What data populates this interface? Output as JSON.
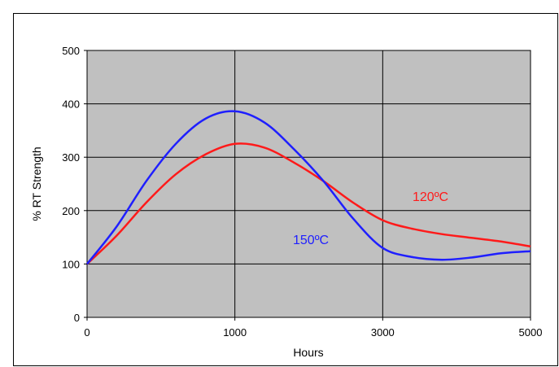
{
  "chart_data": {
    "type": "line",
    "xlabel": "Hours",
    "ylabel": "% RT Strength",
    "x_ticks": [
      "0",
      "1000",
      "3000",
      "5000"
    ],
    "y_ticks": [
      0,
      100,
      200,
      300,
      400,
      500
    ],
    "ylim": [
      0,
      500
    ],
    "grid": true,
    "plot_background": "#c0c0c0",
    "series": [
      {
        "name": "150ºC",
        "color": "#1f1fff",
        "points": [
          [
            0,
            100
          ],
          [
            0.2,
            170
          ],
          [
            0.4,
            255
          ],
          [
            0.6,
            325
          ],
          [
            0.8,
            372
          ],
          [
            1.0,
            386
          ],
          [
            1.2,
            365
          ],
          [
            1.4,
            315
          ],
          [
            1.6,
            255
          ],
          [
            1.8,
            185
          ],
          [
            2.0,
            130
          ],
          [
            2.2,
            113
          ],
          [
            2.4,
            108
          ],
          [
            2.6,
            112
          ],
          [
            2.8,
            120
          ],
          [
            3.0,
            124
          ]
        ]
      },
      {
        "name": "120ºC",
        "color": "#ff1a1a",
        "points": [
          [
            0,
            100
          ],
          [
            0.2,
            153
          ],
          [
            0.4,
            215
          ],
          [
            0.6,
            268
          ],
          [
            0.8,
            305
          ],
          [
            1.0,
            325
          ],
          [
            1.2,
            318
          ],
          [
            1.4,
            290
          ],
          [
            1.6,
            255
          ],
          [
            1.8,
            215
          ],
          [
            2.0,
            182
          ],
          [
            2.2,
            166
          ],
          [
            2.4,
            156
          ],
          [
            2.6,
            149
          ],
          [
            2.8,
            142
          ],
          [
            3.0,
            133
          ]
        ]
      }
    ]
  }
}
